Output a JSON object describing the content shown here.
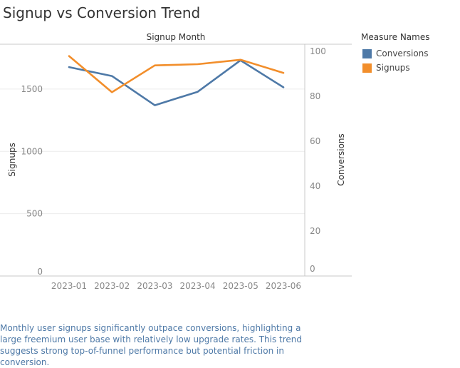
{
  "title": "Signup vs Conversion Trend",
  "colors": {
    "conversions": "#4e79a7",
    "signups": "#f28e2b",
    "caption": "#4e79a7"
  },
  "legend": {
    "title": "Measure Names",
    "items": [
      {
        "label": "Conversions",
        "color": "#4e79a7"
      },
      {
        "label": "Signups",
        "color": "#f28e2b"
      }
    ]
  },
  "caption": "Monthly user signups significantly outpace conversions, highlighting a large freemium user base with relatively low upgrade rates. This trend suggests strong top-of-funnel performance but potential friction in conversion.",
  "chart_data": {
    "type": "line",
    "title": "Signup vs Conversion Trend",
    "x_axis_title": "Signup Month",
    "categories": [
      "2023-01",
      "2023-02",
      "2023-03",
      "2023-04",
      "2023-05",
      "2023-06"
    ],
    "y_left": {
      "label": "Signups",
      "ticks": [
        0,
        500,
        1000,
        1500
      ],
      "range": [
        0,
        1860
      ]
    },
    "y_right": {
      "label": "Conversions",
      "ticks": [
        0,
        20,
        40,
        60,
        80,
        100
      ],
      "range": [
        0,
        100
      ]
    },
    "series": [
      {
        "name": "Conversions",
        "axis": "right",
        "color": "#4e79a7",
        "values": [
          93,
          89,
          76,
          82,
          96,
          84
        ]
      },
      {
        "name": "Signups",
        "axis": "left",
        "color": "#f28e2b",
        "values": [
          1765,
          1475,
          1690,
          1700,
          1735,
          1630
        ]
      }
    ],
    "grid": true,
    "legend_position": "right"
  }
}
